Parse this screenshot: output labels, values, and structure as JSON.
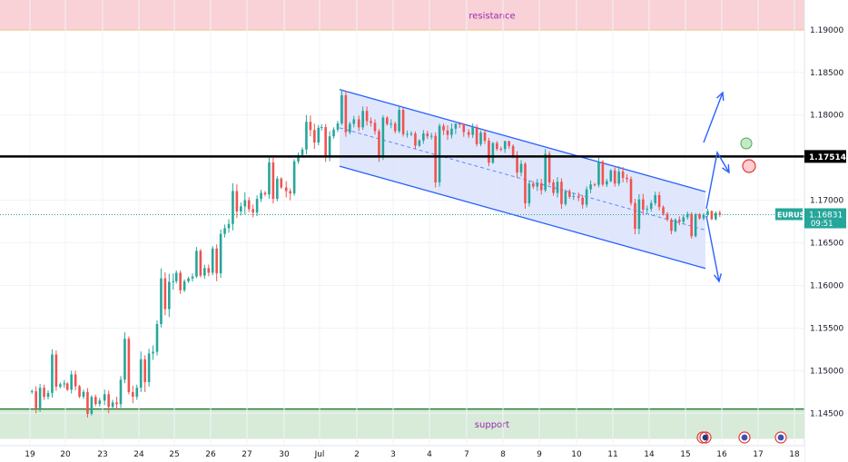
{
  "chart_data": {
    "type": "candlestick",
    "symbol": "EURUSD",
    "last_price": "1.16831",
    "countdown": "09:51",
    "key_level": "1.17514",
    "zones": [
      {
        "name": "resistance",
        "label": "resistance",
        "from": 1.19,
        "to": 1.1935,
        "color": "#f8d2d6",
        "line_color": "#f57c00"
      },
      {
        "name": "support",
        "label": "support",
        "from": 1.142,
        "to": 1.1455,
        "color": "#d7ebd8",
        "line_color": "#2e7d32"
      }
    ],
    "y_ticks": [
      "1.19000",
      "1.18500",
      "1.18000",
      "1.17500",
      "1.17000",
      "1.16500",
      "1.16000",
      "1.15500",
      "1.15000",
      "1.14500"
    ],
    "y_tick_values": [
      1.19,
      1.185,
      1.18,
      1.175,
      1.17,
      1.165,
      1.16,
      1.155,
      1.15,
      1.145
    ],
    "x_ticks": [
      "19",
      "20",
      "23",
      "24",
      "25",
      "26",
      "27",
      "30",
      "Jul",
      "2",
      "3",
      "4",
      "7",
      "8",
      "9",
      "10",
      "11",
      "14",
      "15",
      "16",
      "17",
      "18"
    ],
    "ylim": [
      1.1412,
      1.1935
    ],
    "grid": true,
    "colors": {
      "up": "#26a69a",
      "down": "#ef5350",
      "channel": "#2962ff",
      "channel_fill": "#d6dffc",
      "price_line": "#26a69a",
      "level_line": "#000000"
    },
    "daily_ohlc": [
      {
        "day": "19",
        "o": 1.1475,
        "h": 1.1525,
        "l": 1.145,
        "c": 1.1485
      },
      {
        "day": "20",
        "o": 1.1485,
        "h": 1.15,
        "l": 1.1445,
        "c": 1.1465
      },
      {
        "day": "23",
        "o": 1.1465,
        "h": 1.1545,
        "l": 1.145,
        "c": 1.148
      },
      {
        "day": "24",
        "o": 1.148,
        "h": 1.162,
        "l": 1.1475,
        "c": 1.1605
      },
      {
        "day": "25",
        "o": 1.1605,
        "h": 1.1645,
        "l": 1.159,
        "c": 1.1615
      },
      {
        "day": "26",
        "o": 1.1615,
        "h": 1.172,
        "l": 1.1605,
        "c": 1.17
      },
      {
        "day": "27",
        "o": 1.17,
        "h": 1.175,
        "l": 1.168,
        "c": 1.1715
      },
      {
        "day": "30",
        "o": 1.1715,
        "h": 1.18,
        "l": 1.17,
        "c": 1.1785
      },
      {
        "day": "Jul",
        "o": 1.1785,
        "h": 1.183,
        "l": 1.1745,
        "c": 1.1795
      },
      {
        "day": "2",
        "o": 1.1795,
        "h": 1.181,
        "l": 1.1745,
        "c": 1.179
      },
      {
        "day": "3",
        "o": 1.179,
        "h": 1.181,
        "l": 1.176,
        "c": 1.1775
      },
      {
        "day": "4",
        "o": 1.1775,
        "h": 1.179,
        "l": 1.1715,
        "c": 1.178
      },
      {
        "day": "7",
        "o": 1.178,
        "h": 1.179,
        "l": 1.174,
        "c": 1.176
      },
      {
        "day": "8",
        "o": 1.176,
        "h": 1.177,
        "l": 1.169,
        "c": 1.172
      },
      {
        "day": "9",
        "o": 1.172,
        "h": 1.176,
        "l": 1.169,
        "c": 1.1705
      },
      {
        "day": "10",
        "o": 1.1705,
        "h": 1.175,
        "l": 1.169,
        "c": 1.1735
      },
      {
        "day": "11",
        "o": 1.1735,
        "h": 1.174,
        "l": 1.166,
        "c": 1.169
      },
      {
        "day": "14",
        "o": 1.169,
        "h": 1.171,
        "l": 1.166,
        "c": 1.168
      },
      {
        "day": "15",
        "o": 1.168,
        "h": 1.169,
        "l": 1.1655,
        "c": 1.1683
      }
    ],
    "channel": {
      "upper": [
        {
          "day": "Jul",
          "price": 1.183
        },
        {
          "day": "15",
          "price": 1.171
        }
      ],
      "lower": [
        {
          "day": "Jul",
          "price": 1.174
        },
        {
          "day": "15",
          "price": 1.162
        }
      ]
    },
    "projections": [
      {
        "name": "breakout-up",
        "direction": "up"
      },
      {
        "name": "reject-down",
        "direction": "down"
      }
    ],
    "signals": [
      {
        "name": "target",
        "color": "#4caf50"
      },
      {
        "name": "stop",
        "color": "#e53935"
      }
    ],
    "event_flags": [
      {
        "day": "15",
        "icon": "calendar-icon"
      },
      {
        "day": "16",
        "icon": "us-flag-icon"
      },
      {
        "day": "17",
        "icon": "us-flag-icon"
      }
    ]
  }
}
